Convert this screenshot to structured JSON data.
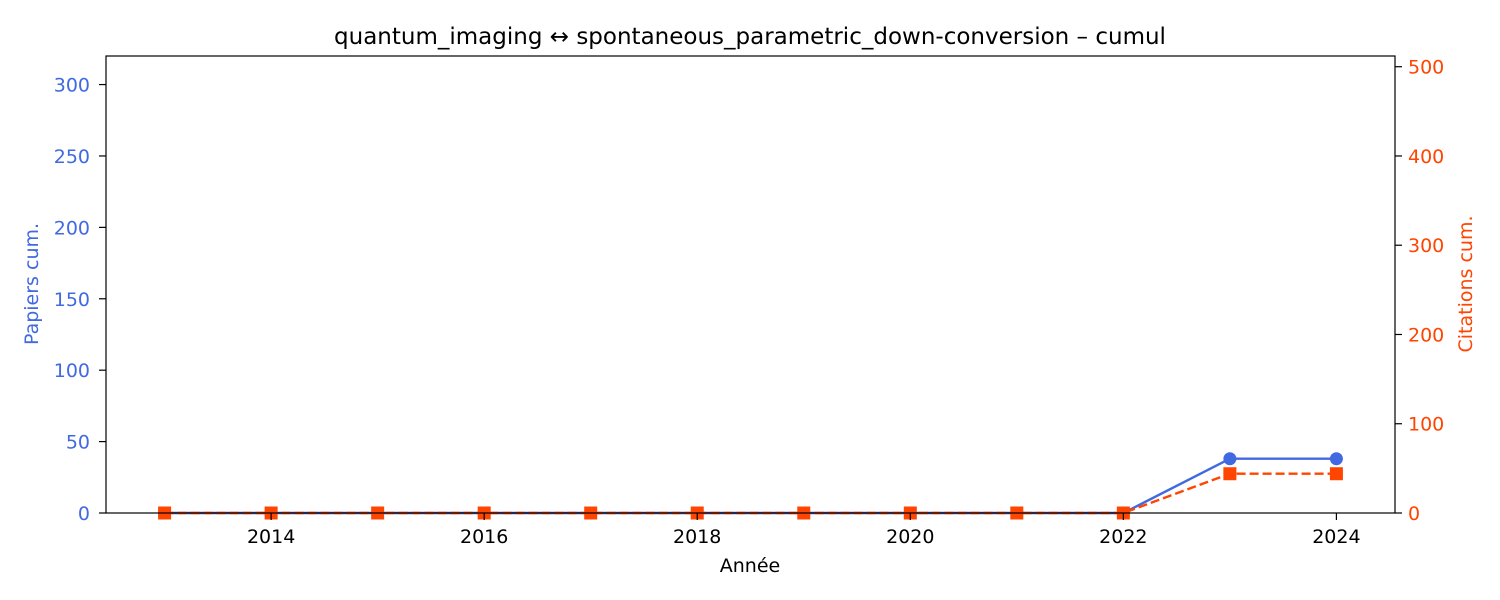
{
  "chart_data": {
    "type": "line",
    "title": "quantum_imaging  ↔  spontaneous_parametric_down-conversion  –  cumul",
    "xlabel": "Année",
    "ylabel_left": "Papiers cum.",
    "ylabel_right": "Citations cum.",
    "x": [
      2013,
      2014,
      2015,
      2016,
      2017,
      2018,
      2019,
      2020,
      2021,
      2022,
      2023,
      2024
    ],
    "xlim": [
      2012.45,
      2024.55
    ],
    "x_ticks": [
      2014,
      2016,
      2018,
      2020,
      2022,
      2024
    ],
    "ylim_left": [
      0,
      320
    ],
    "y_ticks_left": [
      0,
      50,
      100,
      150,
      200,
      250,
      300
    ],
    "ylim_right": [
      0,
      512
    ],
    "y_ticks_right": [
      0,
      100,
      200,
      300,
      400,
      500
    ],
    "grid": false,
    "series": [
      {
        "axis": "left",
        "color": "#4169E1",
        "marker": "circle",
        "linestyle": "solid",
        "values": [
          0,
          0,
          0,
          0,
          0,
          0,
          0,
          0,
          0,
          0,
          38,
          38
        ]
      },
      {
        "axis": "right",
        "color": "#FF4500",
        "marker": "square",
        "linestyle": "dashed",
        "values": [
          0,
          0,
          0,
          0,
          0,
          0,
          0,
          0,
          0,
          0,
          44,
          44
        ]
      }
    ]
  }
}
